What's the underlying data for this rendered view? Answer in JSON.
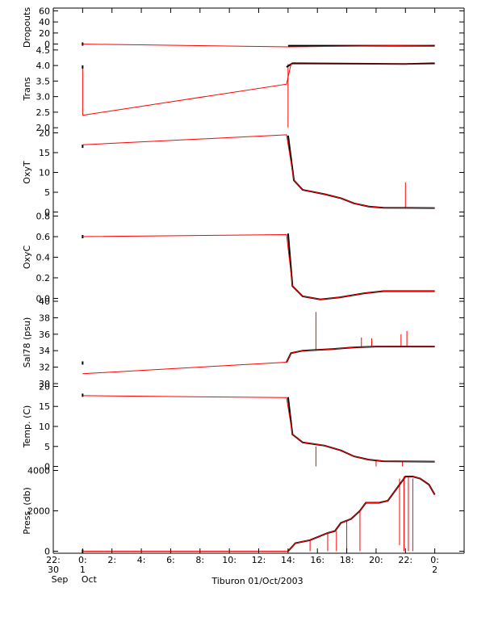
{
  "chart_data": {
    "type": "line",
    "title": "Tiburon 01/Oct/2003",
    "x_unit": "hour",
    "x_range": [
      -2,
      26
    ],
    "grid": false,
    "colors": {
      "raw": "#ff0000",
      "processed": "#000000",
      "axis": "#000000"
    },
    "x_ticks": [
      {
        "x": -2,
        "line1": "22:",
        "line2": "30",
        "line3": "Sep"
      },
      {
        "x": 0,
        "line1": "0:",
        "line2": "1",
        "line3": "Oct"
      },
      {
        "x": 2,
        "line1": "2:"
      },
      {
        "x": 4,
        "line1": "4:"
      },
      {
        "x": 6,
        "line1": "6:"
      },
      {
        "x": 8,
        "line1": "8:"
      },
      {
        "x": 10,
        "line1": "10:"
      },
      {
        "x": 12,
        "line1": "12:"
      },
      {
        "x": 14,
        "line1": "14:"
      },
      {
        "x": 16,
        "line1": "16:"
      },
      {
        "x": 18,
        "line1": "18:"
      },
      {
        "x": 20,
        "line1": "20:"
      },
      {
        "x": 22,
        "line1": "22:"
      },
      {
        "x": 24,
        "line1": "0:",
        "line2": "2"
      }
    ],
    "panels": [
      {
        "ylabel": "Dropouts",
        "ylim": [
          -5,
          65
        ],
        "yticks": [
          0,
          20,
          40,
          60
        ],
        "raw": [
          [
            0,
            0
          ],
          [
            14,
            -5
          ],
          [
            24,
            -2
          ]
        ],
        "processed": [
          [
            0,
            0
          ],
          [
            14,
            -3
          ],
          [
            24,
            -3
          ]
        ],
        "spikes": []
      },
      {
        "ylabel": "Trans",
        "ylim": [
          1.9,
          4.6
        ],
        "yticks": [
          2.0,
          2.5,
          3.0,
          3.5,
          4.0,
          4.5
        ],
        "tick_format": 1,
        "raw": [
          [
            0,
            2.4
          ],
          [
            13.9,
            3.4
          ],
          [
            14.2,
            4.05
          ],
          [
            24,
            4.05
          ]
        ],
        "processed": [
          [
            0,
            3.95
          ],
          [
            13.9,
            3.95
          ],
          [
            14.3,
            4.07
          ],
          [
            22,
            4.05
          ],
          [
            24,
            4.07
          ]
        ],
        "spikes": [
          [
            0,
            2.4,
            4.0
          ],
          [
            14,
            2.0,
            4.05
          ]
        ]
      },
      {
        "ylabel": "OxyT",
        "ylim": [
          -0.5,
          20.5
        ],
        "yticks": [
          0,
          5,
          10,
          15,
          20
        ],
        "raw": [
          [
            0,
            17
          ],
          [
            13.9,
            19.5
          ],
          [
            14.4,
            8
          ],
          [
            15,
            5.6
          ],
          [
            16.5,
            4.5
          ],
          [
            17.6,
            3.5
          ],
          [
            18.5,
            2.2
          ],
          [
            19.5,
            1.4
          ],
          [
            20.5,
            1.1
          ],
          [
            24,
            1
          ]
        ],
        "processed": [
          [
            0,
            16.6
          ],
          [
            14,
            19.3
          ],
          [
            14.4,
            8
          ],
          [
            15,
            5.6
          ],
          [
            16.5,
            4.5
          ],
          [
            17.6,
            3.5
          ],
          [
            18.5,
            2.2
          ],
          [
            19.5,
            1.4
          ],
          [
            20.5,
            1.1
          ],
          [
            24,
            1
          ]
        ],
        "spikes": [
          [
            22,
            1,
            7.5
          ]
        ]
      },
      {
        "ylabel": "OxyC",
        "ylim": [
          -0.02,
          0.82
        ],
        "yticks": [
          0.0,
          0.2,
          0.4,
          0.6,
          0.8
        ],
        "tick_format": 1,
        "raw": [
          [
            0,
            0.6
          ],
          [
            13.9,
            0.62
          ],
          [
            14.3,
            0.12
          ],
          [
            15,
            0.02
          ],
          [
            16.2,
            -0.01
          ],
          [
            17.5,
            0.01
          ],
          [
            19.2,
            0.05
          ],
          [
            20.5,
            0.07
          ],
          [
            24,
            0.07
          ]
        ],
        "processed": [
          [
            0,
            0.6
          ],
          [
            14,
            0.63
          ],
          [
            14.3,
            0.12
          ],
          [
            15,
            0.02
          ],
          [
            16.2,
            -0.01
          ],
          [
            17.5,
            0.01
          ],
          [
            19.2,
            0.05
          ],
          [
            20.5,
            0.07
          ],
          [
            24,
            0.07
          ]
        ],
        "spikes": []
      },
      {
        "ylabel": "Sal78 (psu)",
        "ylim": [
          29.9,
          40.1
        ],
        "yticks": [
          30,
          32,
          34,
          36,
          38,
          40
        ],
        "raw": [
          [
            0,
            31.2
          ],
          [
            13.9,
            32.6
          ],
          [
            14.2,
            33.7
          ],
          [
            15,
            34
          ],
          [
            17,
            34.2
          ],
          [
            18.5,
            34.4
          ],
          [
            20,
            34.5
          ],
          [
            24,
            34.5
          ]
        ],
        "processed": [
          [
            0,
            32.5
          ],
          [
            13.9,
            32.6
          ],
          [
            14.2,
            33.7
          ],
          [
            15,
            34
          ],
          [
            17,
            34.2
          ],
          [
            18.5,
            34.4
          ],
          [
            20,
            34.5
          ],
          [
            24,
            34.5
          ]
        ],
        "spikes": [
          [
            15.9,
            34,
            38.7
          ],
          [
            19,
            34.4,
            35.6
          ],
          [
            19.7,
            34.5,
            35.5
          ],
          [
            21.7,
            34.5,
            36
          ],
          [
            22.1,
            34.5,
            36.4
          ]
        ]
      },
      {
        "ylabel": "Temp. (C)",
        "ylim": [
          -0.5,
          20.5
        ],
        "yticks": [
          0,
          5,
          10,
          15,
          20
        ],
        "raw": [
          [
            0,
            17.7
          ],
          [
            13.9,
            17.2
          ],
          [
            14.3,
            8
          ],
          [
            15,
            6
          ],
          [
            16.5,
            5.2
          ],
          [
            17.6,
            4
          ],
          [
            18.5,
            2.5
          ],
          [
            19.5,
            1.7
          ],
          [
            20.5,
            1.3
          ],
          [
            24,
            1.2
          ]
        ],
        "processed": [
          [
            0,
            17.8
          ],
          [
            14,
            17.3
          ],
          [
            14.3,
            8
          ],
          [
            15,
            6
          ],
          [
            16.5,
            5.2
          ],
          [
            17.6,
            4
          ],
          [
            18.5,
            2.5
          ],
          [
            19.5,
            1.7
          ],
          [
            20.5,
            1.3
          ],
          [
            24,
            1.2
          ]
        ],
        "spikes": [
          [
            15.9,
            0,
            5
          ],
          [
            20,
            0,
            1.5
          ],
          [
            21.8,
            0,
            1.2
          ]
        ]
      },
      {
        "ylabel": "Press. (db)",
        "ylim": [
          -100,
          4100
        ],
        "yticks": [
          0,
          2000,
          4000
        ],
        "raw": [
          [
            0,
            0
          ],
          [
            14,
            0
          ],
          [
            14.5,
            400
          ],
          [
            15.5,
            550
          ],
          [
            16.7,
            900
          ],
          [
            17.2,
            1000
          ],
          [
            17.6,
            1400
          ],
          [
            18.3,
            1600
          ],
          [
            18.9,
            2000
          ],
          [
            19.3,
            2400
          ],
          [
            20.2,
            2400
          ],
          [
            20.8,
            2500
          ],
          [
            21.5,
            3200
          ],
          [
            22,
            3700
          ],
          [
            22.5,
            3700
          ],
          [
            23,
            3600
          ],
          [
            23.6,
            3300
          ],
          [
            24,
            2800
          ]
        ],
        "processed": [
          [
            0,
            0
          ],
          [
            14,
            0
          ],
          [
            14.5,
            400
          ],
          [
            15.5,
            550
          ],
          [
            16.7,
            900
          ],
          [
            17.2,
            1000
          ],
          [
            17.6,
            1400
          ],
          [
            18.3,
            1600
          ],
          [
            18.9,
            2000
          ],
          [
            19.3,
            2400
          ],
          [
            20.2,
            2400
          ],
          [
            20.8,
            2500
          ],
          [
            21.5,
            3200
          ],
          [
            22,
            3700
          ],
          [
            22.5,
            3700
          ],
          [
            23,
            3600
          ],
          [
            23.6,
            3300
          ],
          [
            24,
            2800
          ]
        ],
        "spikes": [
          [
            15.5,
            0,
            500
          ],
          [
            16.7,
            0,
            900
          ],
          [
            17.3,
            0,
            1000
          ],
          [
            18,
            0,
            1500
          ],
          [
            18.9,
            0,
            2000
          ],
          [
            21.6,
            300,
            3600
          ],
          [
            21.9,
            0,
            3700
          ],
          [
            22.2,
            0,
            3700
          ],
          [
            22.5,
            0,
            3600
          ]
        ]
      }
    ]
  }
}
